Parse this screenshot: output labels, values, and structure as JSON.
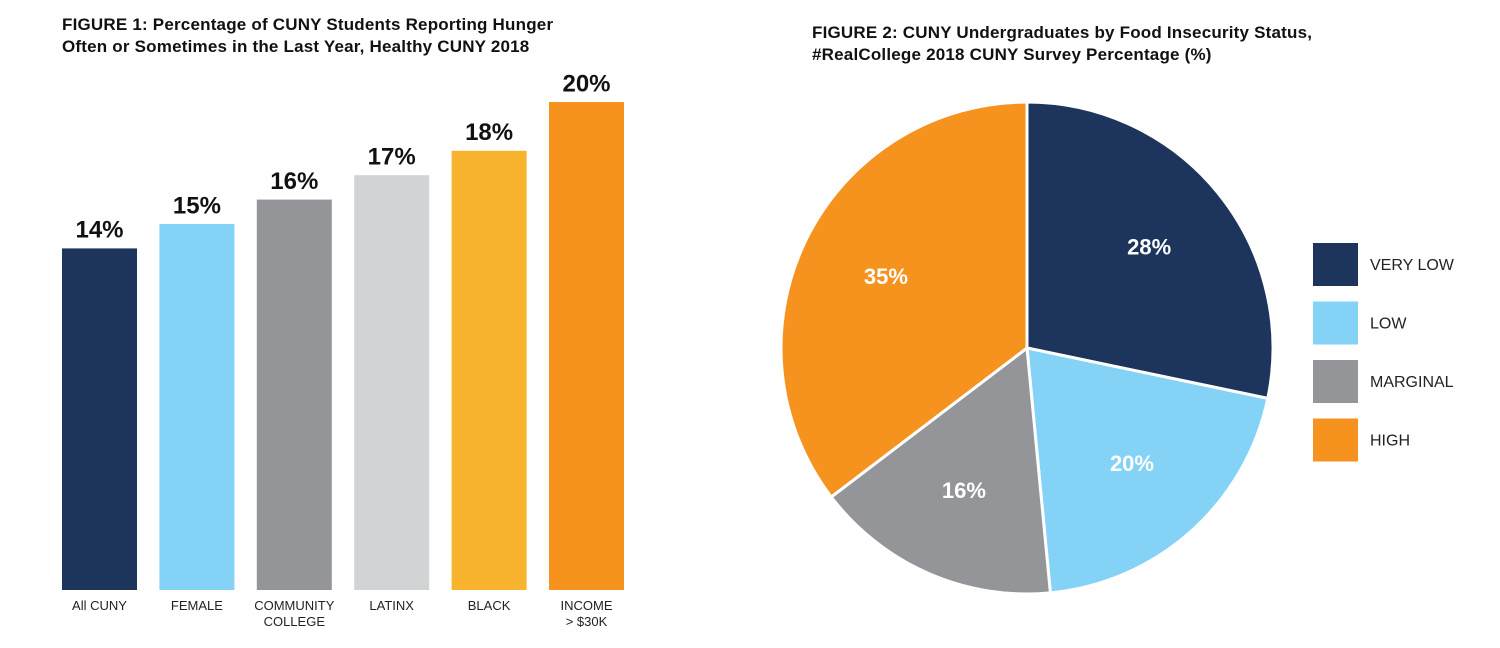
{
  "chart_data": [
    {
      "type": "bar",
      "title": "FIGURE 1: Percentage of CUNY Students Reporting Hunger\nOften or Sometimes in the Last Year, Healthy CUNY 2018",
      "categories": [
        "All CUNY",
        "FEMALE",
        "COMMUNITY\nCOLLEGE",
        "LATINX",
        "BLACK",
        "INCOME\n> $30K"
      ],
      "values": [
        14,
        15,
        16,
        17,
        18,
        20
      ],
      "value_labels": [
        "14%",
        "15%",
        "16%",
        "17%",
        "18%",
        "20%"
      ],
      "colors": [
        "#1d345c",
        "#84d3f6",
        "#939598",
        "#d1d3d4",
        "#f8b42f",
        "#f6921e"
      ]
    },
    {
      "type": "pie",
      "title": "FIGURE 2: CUNY Undergraduates by Food Insecurity Status,\n#RealCollege 2018 CUNY Survey Percentage (%)",
      "categories": [
        "VERY LOW",
        "LOW",
        "MARGINAL",
        "HIGH"
      ],
      "values": [
        28,
        20,
        16,
        35
      ],
      "value_labels": [
        "28%",
        "20%",
        "16%",
        "35%"
      ],
      "colors": [
        "#1d345c",
        "#84d3f6",
        "#939598",
        "#f6921e"
      ]
    }
  ]
}
